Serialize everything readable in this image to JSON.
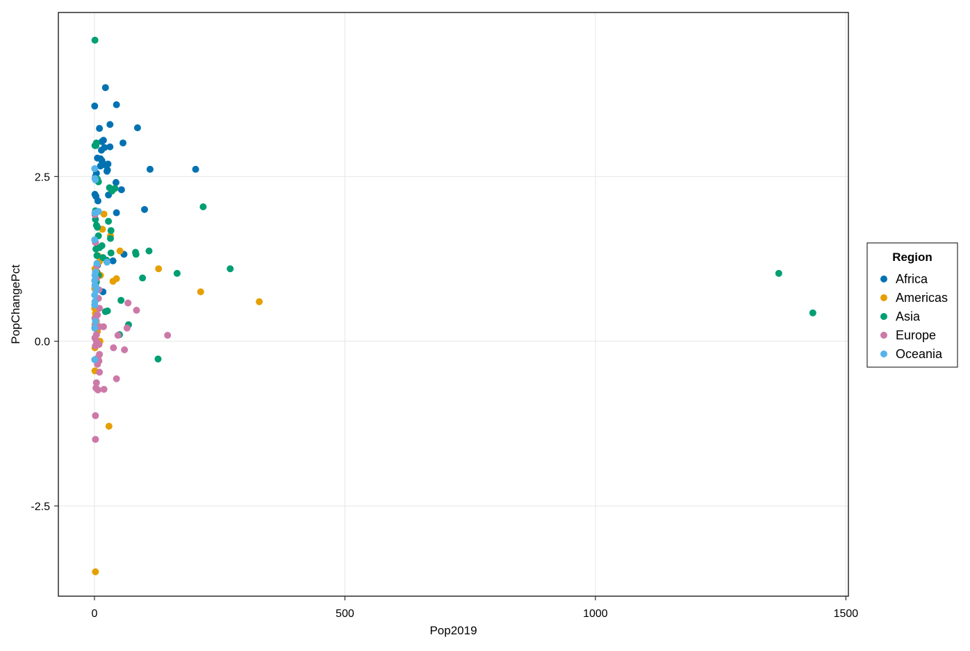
{
  "chart_data": {
    "type": "scatter",
    "title": "",
    "xlabel": "Pop2019",
    "ylabel": "PopChangePct",
    "xlim": [
      -72,
      1505
    ],
    "ylim": [
      -3.87,
      4.99
    ],
    "x_ticks": [
      0,
      500,
      1000,
      1500
    ],
    "y_ticks": [
      -2.5,
      0.0,
      2.5
    ],
    "x_tick_labels": [
      "0",
      "500",
      "1000",
      "1500"
    ],
    "y_tick_labels": [
      "-2.5",
      "0.0",
      "2.5"
    ],
    "grid": true,
    "legend": {
      "title": "Region",
      "placement": "right"
    },
    "series": [
      {
        "name": "Africa",
        "color": "#0072b2",
        "points": [
          [
            22,
            3.85
          ],
          [
            0.5,
            3.57
          ],
          [
            44,
            3.59
          ],
          [
            10,
            3.23
          ],
          [
            31,
            3.29
          ],
          [
            86,
            3.24
          ],
          [
            18,
            3.05
          ],
          [
            15,
            3.03
          ],
          [
            57,
            3.01
          ],
          [
            31,
            2.95
          ],
          [
            20,
            2.94
          ],
          [
            14,
            2.9
          ],
          [
            6,
            2.78
          ],
          [
            12,
            2.77
          ],
          [
            15,
            2.74
          ],
          [
            27,
            2.69
          ],
          [
            20,
            2.68
          ],
          [
            12,
            2.66
          ],
          [
            26,
            2.6
          ],
          [
            111,
            2.61
          ],
          [
            202,
            2.61
          ],
          [
            2,
            2.5
          ],
          [
            43,
            2.41
          ],
          [
            54,
            2.3
          ],
          [
            28,
            2.22
          ],
          [
            1,
            2.23
          ],
          [
            3,
            2.2
          ],
          [
            7,
            2.13
          ],
          [
            44,
            1.95
          ],
          [
            100,
            2.0
          ],
          [
            2,
            1.5
          ],
          [
            59,
            1.32
          ],
          [
            37,
            1.22
          ],
          [
            6,
            1.15
          ],
          [
            5,
            1.05
          ],
          [
            17,
            0.75
          ],
          [
            3,
            2.45
          ],
          [
            25,
            2.58
          ],
          [
            4,
            2.55
          ]
        ]
      },
      {
        "name": "Americas",
        "color": "#e69f00",
        "points": [
          [
            19,
            1.93
          ],
          [
            16,
            1.7
          ],
          [
            32,
            1.6
          ],
          [
            51,
            1.37
          ],
          [
            10,
            1.21
          ],
          [
            128,
            1.1
          ],
          [
            3,
            1.06
          ],
          [
            12,
            1.0
          ],
          [
            44,
            0.95
          ],
          [
            37,
            0.91
          ],
          [
            212,
            0.75
          ],
          [
            329,
            0.6
          ],
          [
            0.5,
            0.5
          ],
          [
            2,
            0.42
          ],
          [
            4,
            0.3
          ],
          [
            1,
            0.25
          ],
          [
            6,
            0.15
          ],
          [
            11,
            0.0
          ],
          [
            1,
            -0.1
          ],
          [
            3,
            -0.28
          ],
          [
            1,
            -0.45
          ],
          [
            29,
            -1.29
          ],
          [
            2,
            -3.5
          ],
          [
            0.5,
            0.8
          ],
          [
            7,
            1.3
          ],
          [
            1,
            1.1
          ],
          [
            3,
            0.95
          ]
        ]
      },
      {
        "name": "Asia",
        "color": "#009e73",
        "points": [
          [
            1,
            4.57
          ],
          [
            4,
            3.01
          ],
          [
            1,
            2.97
          ],
          [
            3,
            2.97
          ],
          [
            8,
            2.42
          ],
          [
            6,
            2.46
          ],
          [
            41,
            2.32
          ],
          [
            30,
            2.33
          ],
          [
            35,
            2.28
          ],
          [
            217,
            2.04
          ],
          [
            2,
            1.98
          ],
          [
            2,
            1.85
          ],
          [
            28,
            1.82
          ],
          [
            4,
            1.76
          ],
          [
            6,
            1.73
          ],
          [
            33,
            1.68
          ],
          [
            8,
            1.6
          ],
          [
            32,
            1.56
          ],
          [
            15,
            1.45
          ],
          [
            10,
            1.42
          ],
          [
            3,
            1.4
          ],
          [
            109,
            1.37
          ],
          [
            82,
            1.35
          ],
          [
            33,
            1.34
          ],
          [
            83,
            1.32
          ],
          [
            5,
            1.3
          ],
          [
            17,
            1.27
          ],
          [
            24,
            1.23
          ],
          [
            271,
            1.1
          ],
          [
            165,
            1.03
          ],
          [
            1366,
            1.03
          ],
          [
            96,
            0.96
          ],
          [
            8,
            1.0
          ],
          [
            2,
            0.85
          ],
          [
            4,
            0.9
          ],
          [
            53,
            0.62
          ],
          [
            26,
            0.46
          ],
          [
            22,
            0.45
          ],
          [
            68,
            0.25
          ],
          [
            50,
            0.1
          ],
          [
            1434,
            0.43
          ],
          [
            127,
            -0.27
          ]
        ]
      },
      {
        "name": "Europe",
        "color": "#cc79a7",
        "points": [
          [
            1,
            1.92
          ],
          [
            2,
            1.5
          ],
          [
            5,
            1.15
          ],
          [
            4,
            0.95
          ],
          [
            9,
            0.78
          ],
          [
            8,
            0.65
          ],
          [
            67,
            0.58
          ],
          [
            84,
            0.47
          ],
          [
            10,
            0.5
          ],
          [
            6,
            0.4
          ],
          [
            1,
            0.35
          ],
          [
            3,
            0.32
          ],
          [
            2,
            0.25
          ],
          [
            10,
            0.22
          ],
          [
            18,
            0.22
          ],
          [
            65,
            0.2
          ],
          [
            4,
            0.1
          ],
          [
            146,
            0.09
          ],
          [
            47,
            0.09
          ],
          [
            1,
            0.05
          ],
          [
            4,
            0.0
          ],
          [
            9,
            -0.05
          ],
          [
            2,
            -0.07
          ],
          [
            38,
            -0.1
          ],
          [
            60,
            -0.13
          ],
          [
            10,
            -0.2
          ],
          [
            7,
            -0.25
          ],
          [
            9,
            -0.3
          ],
          [
            6,
            -0.35
          ],
          [
            10,
            -0.47
          ],
          [
            44,
            -0.57
          ],
          [
            4,
            -0.63
          ],
          [
            3,
            -0.71
          ],
          [
            7,
            -0.74
          ],
          [
            19,
            -0.73
          ],
          [
            2,
            -1.13
          ],
          [
            2,
            -1.49
          ]
        ]
      },
      {
        "name": "Oceania",
        "color": "#56b4e9",
        "points": [
          [
            0.5,
            2.62
          ],
          [
            1,
            2.47
          ],
          [
            2,
            2.45
          ],
          [
            8,
            1.97
          ],
          [
            1,
            1.95
          ],
          [
            0.5,
            1.54
          ],
          [
            25,
            1.2
          ],
          [
            5,
            1.18
          ],
          [
            2,
            1.05
          ],
          [
            1,
            1.0
          ],
          [
            0.5,
            0.92
          ],
          [
            1,
            0.85
          ],
          [
            4,
            0.8
          ],
          [
            3,
            0.77
          ],
          [
            0.5,
            0.7
          ],
          [
            1,
            0.6
          ],
          [
            0.5,
            0.55
          ],
          [
            2,
            0.3
          ],
          [
            0.5,
            0.2
          ],
          [
            0.5,
            -0.28
          ]
        ]
      }
    ]
  }
}
